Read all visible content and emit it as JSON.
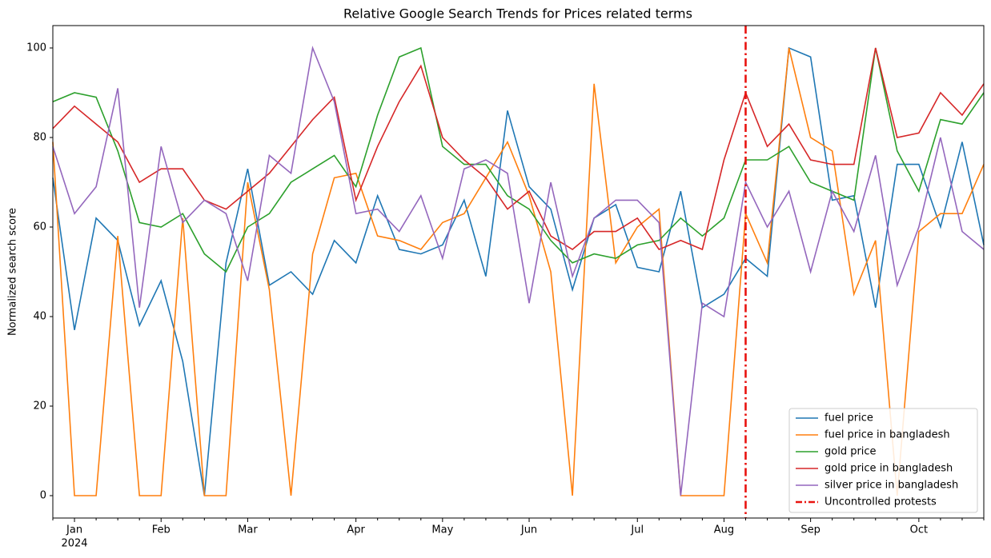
{
  "chart_data": {
    "type": "line",
    "title": "Relative Google Search Trends for Prices related terms",
    "y_label": "Normalized search score",
    "year_label": "2024",
    "categories": [
      null,
      "Jan",
      null,
      null,
      null,
      "Feb",
      null,
      null,
      null,
      "Mar",
      null,
      null,
      null,
      null,
      "Apr",
      null,
      null,
      null,
      "May",
      null,
      null,
      null,
      "Jun",
      null,
      null,
      null,
      null,
      "Jul",
      null,
      null,
      null,
      "Aug",
      null,
      null,
      null,
      "Sep",
      null,
      null,
      null,
      null,
      "Oct",
      null,
      null,
      null
    ],
    "ylim": [
      -5,
      105
    ],
    "yticks": [
      0,
      20,
      40,
      60,
      80,
      100
    ],
    "legend": "lower right",
    "grid": false,
    "series": [
      {
        "name": "fuel price",
        "color": "#1f77b4",
        "values": [
          71,
          37,
          62,
          57,
          38,
          48,
          30,
          0,
          52,
          73,
          47,
          50,
          45,
          57,
          52,
          67,
          55,
          54,
          56,
          66,
          49,
          86,
          69,
          64,
          46,
          62,
          65,
          51,
          50,
          68,
          42,
          45,
          53,
          49,
          100,
          98,
          66,
          67,
          42,
          74,
          74,
          60,
          79,
          56
        ]
      },
      {
        "name": "fuel price in bangladesh",
        "color": "#ff7f0e",
        "values": [
          79,
          0,
          0,
          58,
          0,
          0,
          62,
          0,
          0,
          70,
          46,
          0,
          54,
          71,
          72,
          58,
          57,
          55,
          61,
          63,
          71,
          79,
          67,
          50,
          0,
          92,
          52,
          60,
          64,
          0,
          0,
          0,
          63,
          52,
          100,
          80,
          77,
          45,
          57,
          0,
          59,
          63,
          63,
          74
        ]
      },
      {
        "name": "gold price",
        "color": "#2ca02c",
        "values": [
          88,
          90,
          89,
          77,
          61,
          60,
          63,
          54,
          50,
          60,
          63,
          70,
          73,
          76,
          69,
          85,
          98,
          100,
          78,
          74,
          74,
          67,
          64,
          57,
          52,
          54,
          53,
          56,
          57,
          62,
          58,
          62,
          75,
          75,
          78,
          70,
          68,
          66,
          100,
          77,
          68,
          84,
          83,
          90
        ]
      },
      {
        "name": "gold price in bangladesh",
        "color": "#d62728",
        "values": [
          82,
          87,
          83,
          79,
          70,
          73,
          73,
          66,
          64,
          68,
          72,
          78,
          84,
          89,
          66,
          78,
          88,
          96,
          80,
          75,
          71,
          64,
          68,
          58,
          55,
          59,
          59,
          62,
          55,
          57,
          55,
          75,
          90,
          78,
          83,
          75,
          74,
          74,
          100,
          80,
          81,
          90,
          85,
          92
        ]
      },
      {
        "name": "silver price in bangladesh",
        "color": "#9467bd",
        "values": [
          78,
          63,
          69,
          91,
          42,
          78,
          61,
          66,
          63,
          48,
          76,
          72,
          100,
          88,
          63,
          64,
          59,
          67,
          53,
          73,
          75,
          72,
          43,
          70,
          49,
          62,
          66,
          66,
          61,
          0,
          43,
          40,
          70,
          60,
          68,
          50,
          68,
          59,
          76,
          47,
          60,
          80,
          59,
          55
        ]
      }
    ],
    "vline": {
      "name": "Uncontrolled protests",
      "category_index": 32,
      "color": "#e8130f"
    }
  }
}
